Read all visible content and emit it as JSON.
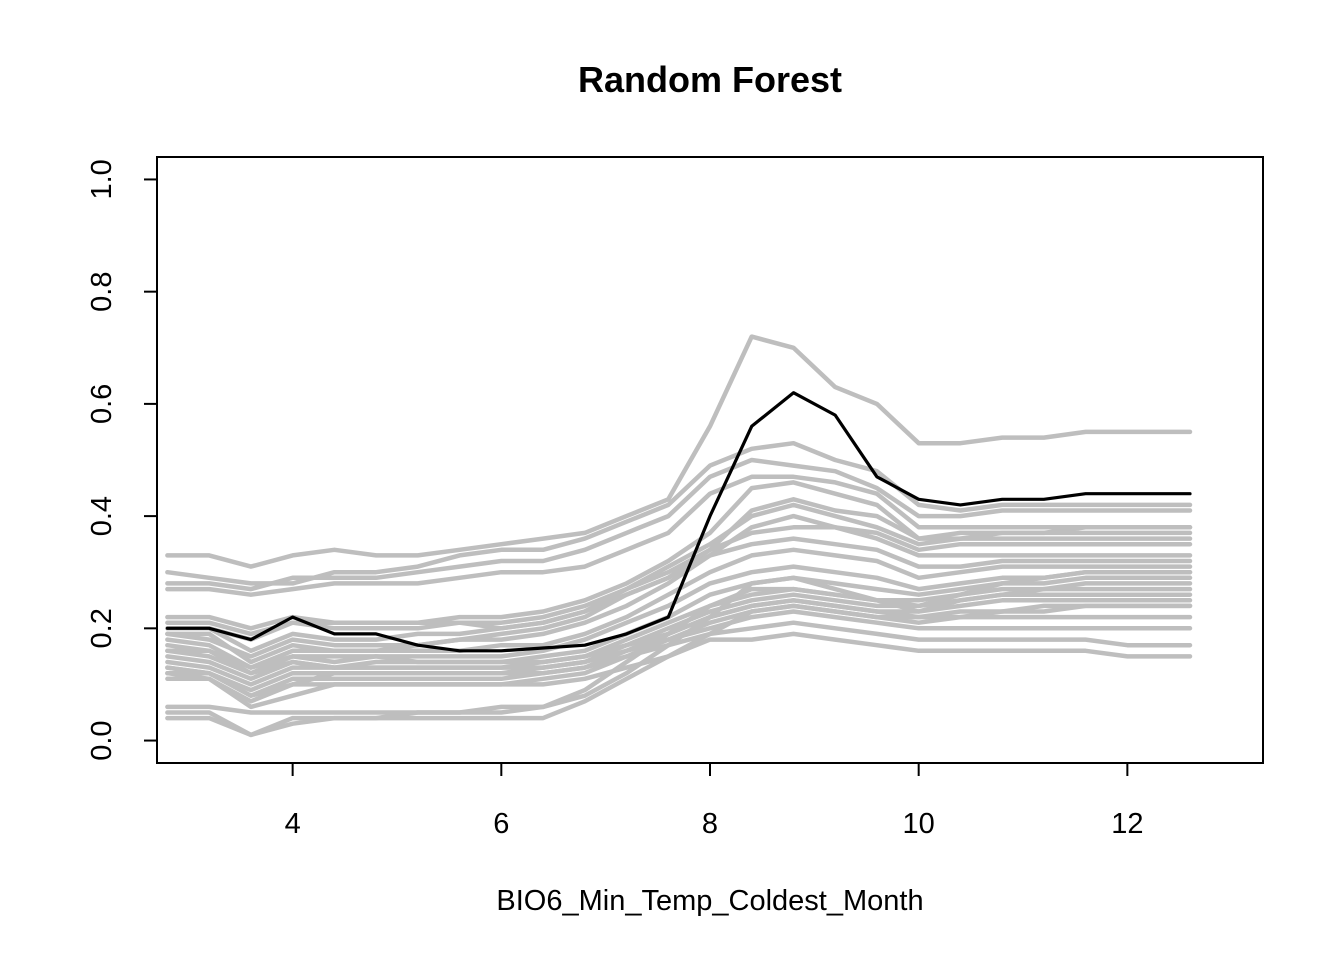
{
  "chart_data": {
    "type": "line",
    "title": "Random Forest",
    "xlabel": "BIO6_Min_Temp_Coldest_Month",
    "ylabel": "",
    "xlim": [
      2.7,
      13.3
    ],
    "ylim": [
      -0.04,
      1.04
    ],
    "xticks": [
      4,
      6,
      8,
      10,
      12
    ],
    "yticks": [
      0.0,
      0.2,
      0.4,
      0.6,
      0.8,
      1.0
    ],
    "xtick_labels": [
      "4",
      "6",
      "8",
      "10",
      "12"
    ],
    "ytick_labels": [
      "0.0",
      "0.2",
      "0.4",
      "0.6",
      "0.8",
      "1.0"
    ],
    "grid": false,
    "legend": "none",
    "colors": {
      "runs": "#bebebe",
      "mean": "#000000"
    },
    "x": [
      2.8,
      3.2,
      3.6,
      4.0,
      4.4,
      4.8,
      5.2,
      5.6,
      6.0,
      6.4,
      6.8,
      7.2,
      7.6,
      8.0,
      8.4,
      8.8,
      9.2,
      9.6,
      10.0,
      10.4,
      10.8,
      11.2,
      11.6,
      12.0,
      12.6
    ],
    "series": [
      {
        "role": "mean",
        "values": [
          0.2,
          0.2,
          0.18,
          0.22,
          0.19,
          0.19,
          0.17,
          0.16,
          0.16,
          0.165,
          0.17,
          0.19,
          0.22,
          0.4,
          0.56,
          0.62,
          0.58,
          0.47,
          0.43,
          0.42,
          0.43,
          0.43,
          0.44,
          0.44,
          0.44
        ]
      },
      {
        "role": "run",
        "values": [
          0.33,
          0.33,
          0.31,
          0.33,
          0.34,
          0.33,
          0.33,
          0.34,
          0.35,
          0.36,
          0.37,
          0.4,
          0.43,
          0.56,
          0.72,
          0.7,
          0.63,
          0.6,
          0.53,
          0.53,
          0.54,
          0.54,
          0.55,
          0.55,
          0.55
        ]
      },
      {
        "role": "run",
        "values": [
          0.3,
          0.29,
          0.28,
          0.28,
          0.3,
          0.3,
          0.31,
          0.33,
          0.34,
          0.34,
          0.36,
          0.39,
          0.42,
          0.49,
          0.52,
          0.53,
          0.5,
          0.48,
          0.42,
          0.41,
          0.42,
          0.42,
          0.42,
          0.42,
          0.42
        ]
      },
      {
        "role": "run",
        "values": [
          0.28,
          0.28,
          0.27,
          0.29,
          0.29,
          0.29,
          0.3,
          0.31,
          0.32,
          0.32,
          0.34,
          0.37,
          0.4,
          0.47,
          0.5,
          0.49,
          0.48,
          0.45,
          0.4,
          0.4,
          0.41,
          0.41,
          0.41,
          0.41,
          0.41
        ]
      },
      {
        "role": "run",
        "values": [
          0.27,
          0.27,
          0.26,
          0.27,
          0.28,
          0.28,
          0.28,
          0.29,
          0.3,
          0.3,
          0.31,
          0.34,
          0.37,
          0.44,
          0.47,
          0.47,
          0.46,
          0.44,
          0.38,
          0.38,
          0.38,
          0.38,
          0.38,
          0.38,
          0.38
        ]
      },
      {
        "role": "run",
        "values": [
          0.22,
          0.22,
          0.2,
          0.22,
          0.21,
          0.21,
          0.21,
          0.22,
          0.22,
          0.23,
          0.25,
          0.28,
          0.32,
          0.37,
          0.45,
          0.46,
          0.44,
          0.42,
          0.36,
          0.37,
          0.37,
          0.37,
          0.37,
          0.37,
          0.37
        ]
      },
      {
        "role": "run",
        "values": [
          0.21,
          0.21,
          0.19,
          0.21,
          0.2,
          0.2,
          0.2,
          0.21,
          0.21,
          0.22,
          0.24,
          0.27,
          0.31,
          0.35,
          0.4,
          0.42,
          0.4,
          0.38,
          0.35,
          0.36,
          0.36,
          0.36,
          0.36,
          0.36,
          0.36
        ]
      },
      {
        "role": "run",
        "values": [
          0.2,
          0.2,
          0.16,
          0.19,
          0.18,
          0.18,
          0.19,
          0.19,
          0.2,
          0.21,
          0.23,
          0.26,
          0.29,
          0.34,
          0.37,
          0.38,
          0.38,
          0.36,
          0.33,
          0.33,
          0.33,
          0.33,
          0.33,
          0.33,
          0.33
        ]
      },
      {
        "role": "run",
        "values": [
          0.19,
          0.18,
          0.15,
          0.18,
          0.17,
          0.17,
          0.17,
          0.18,
          0.18,
          0.19,
          0.21,
          0.24,
          0.28,
          0.33,
          0.35,
          0.36,
          0.35,
          0.34,
          0.31,
          0.31,
          0.32,
          0.32,
          0.32,
          0.32,
          0.32
        ]
      },
      {
        "role": "run",
        "values": [
          0.17,
          0.16,
          0.13,
          0.16,
          0.16,
          0.16,
          0.16,
          0.16,
          0.17,
          0.17,
          0.19,
          0.22,
          0.26,
          0.3,
          0.33,
          0.34,
          0.33,
          0.32,
          0.29,
          0.3,
          0.31,
          0.31,
          0.31,
          0.31,
          0.31
        ]
      },
      {
        "role": "run",
        "values": [
          0.16,
          0.15,
          0.12,
          0.15,
          0.14,
          0.15,
          0.15,
          0.15,
          0.15,
          0.16,
          0.18,
          0.21,
          0.24,
          0.28,
          0.3,
          0.31,
          0.3,
          0.29,
          0.27,
          0.28,
          0.29,
          0.29,
          0.3,
          0.3,
          0.3
        ]
      },
      {
        "role": "run",
        "values": [
          0.15,
          0.14,
          0.11,
          0.14,
          0.13,
          0.14,
          0.14,
          0.14,
          0.14,
          0.15,
          0.16,
          0.19,
          0.22,
          0.26,
          0.28,
          0.29,
          0.28,
          0.27,
          0.26,
          0.27,
          0.28,
          0.28,
          0.29,
          0.29,
          0.29
        ]
      },
      {
        "role": "run",
        "values": [
          0.14,
          0.13,
          0.1,
          0.13,
          0.13,
          0.13,
          0.13,
          0.13,
          0.13,
          0.14,
          0.15,
          0.18,
          0.21,
          0.24,
          0.26,
          0.27,
          0.26,
          0.25,
          0.25,
          0.26,
          0.27,
          0.27,
          0.27,
          0.27,
          0.27
        ]
      },
      {
        "role": "run",
        "values": [
          0.13,
          0.12,
          0.09,
          0.12,
          0.12,
          0.12,
          0.12,
          0.12,
          0.12,
          0.13,
          0.14,
          0.17,
          0.2,
          0.23,
          0.25,
          0.26,
          0.25,
          0.24,
          0.24,
          0.25,
          0.26,
          0.26,
          0.26,
          0.26,
          0.26
        ]
      },
      {
        "role": "run",
        "values": [
          0.12,
          0.12,
          0.08,
          0.11,
          0.11,
          0.11,
          0.11,
          0.11,
          0.11,
          0.12,
          0.13,
          0.16,
          0.19,
          0.22,
          0.24,
          0.25,
          0.24,
          0.23,
          0.23,
          0.24,
          0.25,
          0.25,
          0.25,
          0.25,
          0.25
        ]
      },
      {
        "role": "run",
        "values": [
          0.11,
          0.11,
          0.07,
          0.1,
          0.1,
          0.1,
          0.1,
          0.1,
          0.1,
          0.11,
          0.12,
          0.15,
          0.18,
          0.21,
          0.23,
          0.24,
          0.23,
          0.22,
          0.22,
          0.23,
          0.23,
          0.24,
          0.24,
          0.24,
          0.24
        ]
      },
      {
        "role": "run",
        "values": [
          0.18,
          0.17,
          0.13,
          0.15,
          0.15,
          0.15,
          0.14,
          0.14,
          0.14,
          0.14,
          0.15,
          0.17,
          0.19,
          0.22,
          0.24,
          0.25,
          0.24,
          0.23,
          0.22,
          0.22,
          0.22,
          0.22,
          0.22,
          0.22,
          0.22
        ]
      },
      {
        "role": "run",
        "values": [
          0.16,
          0.16,
          0.12,
          0.14,
          0.13,
          0.13,
          0.13,
          0.13,
          0.13,
          0.13,
          0.14,
          0.16,
          0.18,
          0.2,
          0.22,
          0.23,
          0.22,
          0.21,
          0.2,
          0.2,
          0.2,
          0.2,
          0.2,
          0.2,
          0.2
        ]
      },
      {
        "role": "run",
        "values": [
          0.13,
          0.12,
          0.08,
          0.1,
          0.12,
          0.12,
          0.12,
          0.12,
          0.12,
          0.12,
          0.13,
          0.15,
          0.17,
          0.19,
          0.2,
          0.21,
          0.2,
          0.19,
          0.18,
          0.18,
          0.18,
          0.18,
          0.18,
          0.17,
          0.17
        ]
      },
      {
        "role": "run",
        "values": [
          0.12,
          0.11,
          0.06,
          0.08,
          0.1,
          0.1,
          0.1,
          0.1,
          0.1,
          0.1,
          0.11,
          0.13,
          0.15,
          0.18,
          0.18,
          0.19,
          0.18,
          0.17,
          0.16,
          0.16,
          0.16,
          0.16,
          0.16,
          0.15,
          0.15
        ]
      },
      {
        "role": "run",
        "values": [
          0.06,
          0.06,
          0.05,
          0.05,
          0.05,
          0.05,
          0.05,
          0.05,
          0.06,
          0.06,
          0.08,
          0.12,
          0.17,
          0.22,
          0.28,
          0.29,
          0.27,
          0.25,
          0.24,
          0.26,
          0.28,
          0.29,
          0.3,
          0.3,
          0.3
        ]
      },
      {
        "role": "run",
        "values": [
          0.05,
          0.05,
          0.01,
          0.04,
          0.04,
          0.04,
          0.05,
          0.05,
          0.05,
          0.06,
          0.09,
          0.14,
          0.19,
          0.24,
          0.27,
          0.27,
          0.26,
          0.25,
          0.23,
          0.25,
          0.26,
          0.27,
          0.28,
          0.28,
          0.28
        ]
      },
      {
        "role": "run",
        "values": [
          0.04,
          0.04,
          0.01,
          0.03,
          0.04,
          0.04,
          0.04,
          0.04,
          0.04,
          0.04,
          0.07,
          0.11,
          0.15,
          0.19,
          0.23,
          0.24,
          0.23,
          0.22,
          0.21,
          0.22,
          0.23,
          0.23,
          0.24,
          0.24,
          0.24
        ]
      },
      {
        "role": "run",
        "values": [
          0.2,
          0.2,
          0.18,
          0.21,
          0.21,
          0.21,
          0.21,
          0.21,
          0.2,
          0.21,
          0.23,
          0.27,
          0.3,
          0.34,
          0.41,
          0.43,
          0.41,
          0.4,
          0.36,
          0.36,
          0.37,
          0.37,
          0.38,
          0.38,
          0.38
        ]
      },
      {
        "role": "run",
        "values": [
          0.19,
          0.19,
          0.14,
          0.17,
          0.16,
          0.16,
          0.17,
          0.18,
          0.19,
          0.2,
          0.22,
          0.26,
          0.29,
          0.33,
          0.38,
          0.4,
          0.38,
          0.37,
          0.34,
          0.35,
          0.35,
          0.35,
          0.35,
          0.35,
          0.35
        ]
      }
    ]
  }
}
